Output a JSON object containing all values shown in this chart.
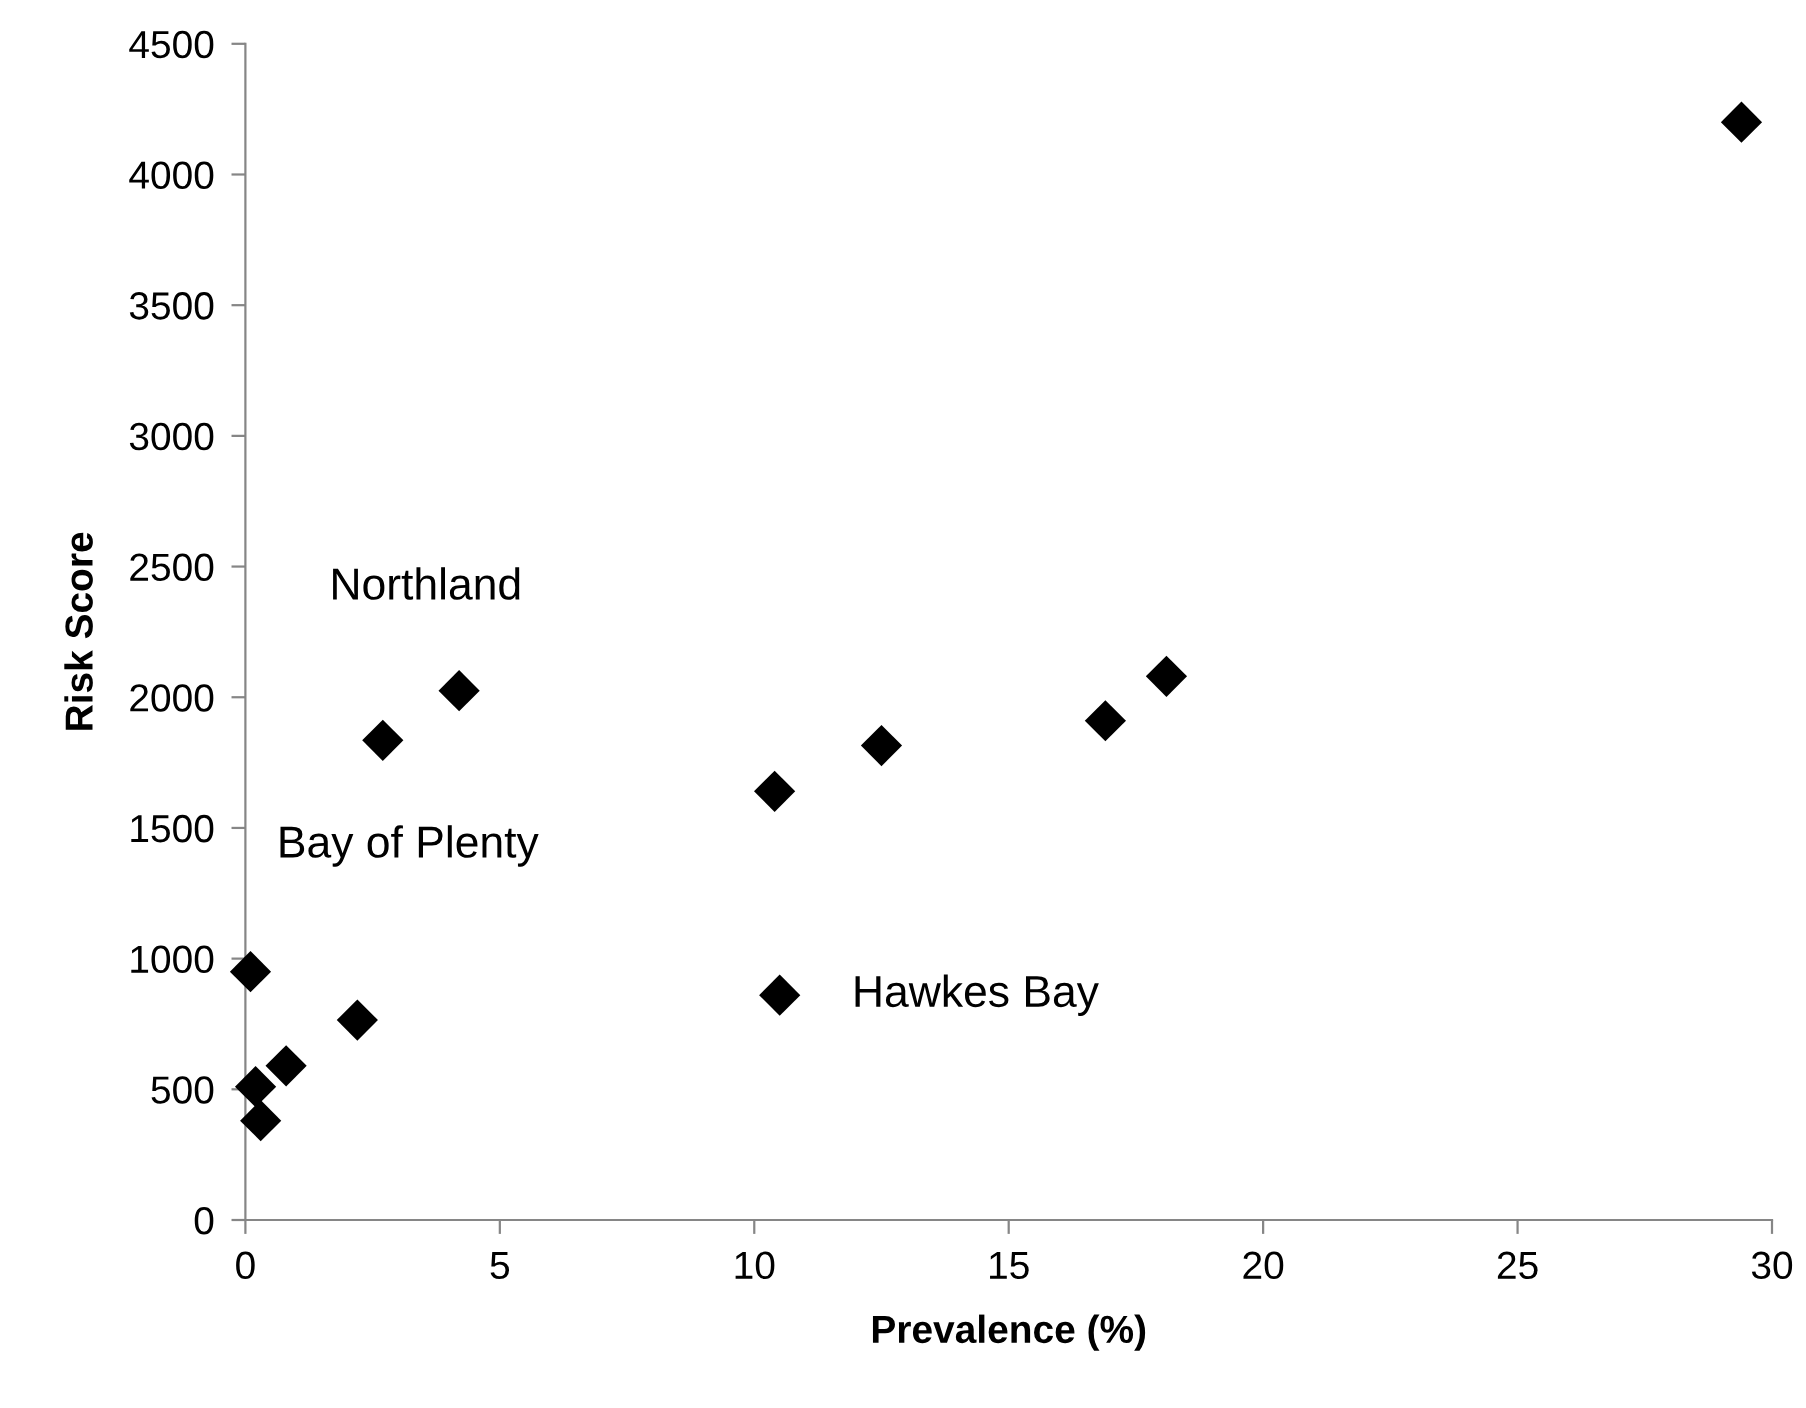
{
  "chart_data": {
    "type": "scatter",
    "xlabel": "Prevalence (%)",
    "ylabel": "Risk Score",
    "series": [
      {
        "color": "#000000",
        "x": [
          0.1,
          0.2,
          0.3,
          0.8,
          2.2,
          2.7,
          4.2,
          10.4,
          10.5,
          12.5,
          16.9,
          18.1,
          29.4
        ],
        "values": [
          950,
          510,
          380,
          590,
          765,
          1835,
          2025,
          1640,
          860,
          1815,
          1910,
          2080,
          4200
        ]
      }
    ],
    "annotations": [
      {
        "text": "Northland",
        "x": 4.2,
        "y": 2025
      },
      {
        "text": "Bay of Plenty",
        "x": 2.7,
        "y": 1835
      },
      {
        "text": "Hawkes Bay",
        "x": 10.5,
        "y": 860
      }
    ],
    "xlim": [
      0,
      30
    ],
    "xticks": [
      0,
      5,
      10,
      15,
      20,
      25,
      30
    ],
    "ylim": [
      0,
      4500
    ],
    "yticks": [
      0,
      500,
      1000,
      1500,
      2000,
      2500,
      3000,
      3500,
      4000,
      4500
    ],
    "marker": "diamond"
  }
}
